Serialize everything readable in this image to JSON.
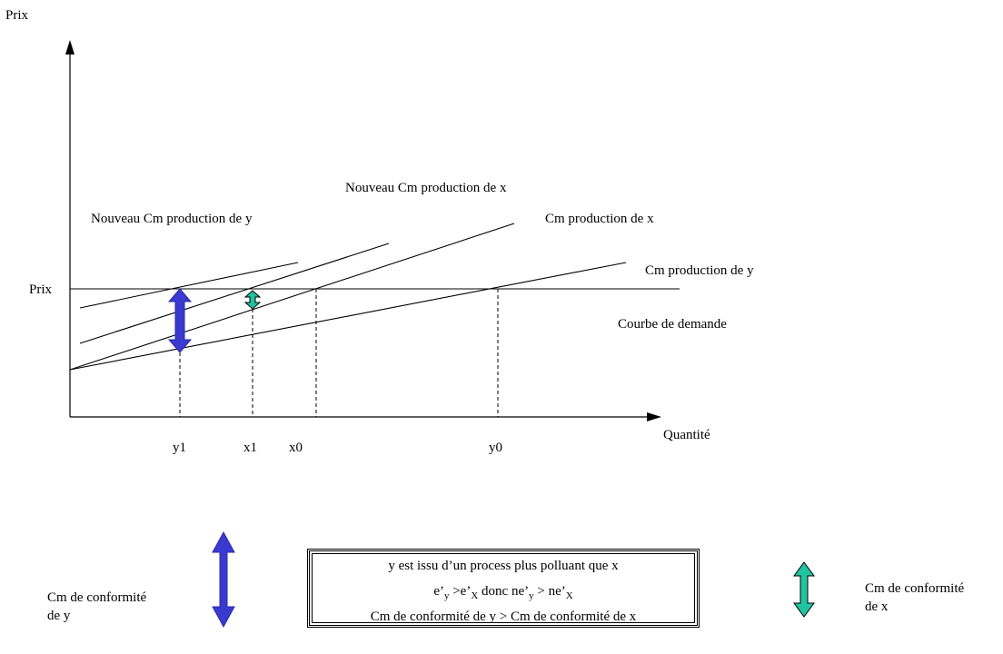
{
  "axes": {
    "y_label": "Prix",
    "x_label": "Quantité",
    "price_label": "Prix"
  },
  "curve_labels": {
    "new_cm_x": "Nouveau Cm production de x",
    "new_cm_y": "Nouveau Cm production de y",
    "cm_x": "Cm production de x",
    "cm_y": "Cm production de y",
    "demand": "Courbe de demande"
  },
  "ticks": {
    "y1": "y1",
    "x1": "x1",
    "x0": "x0",
    "y0": "y0"
  },
  "colors": {
    "y_arrow": "#3a3ad0",
    "x_arrow": "#1fc4a0",
    "line": "#000000"
  },
  "legend": {
    "y_line1": "Cm de conformité",
    "y_line2": "de y",
    "x_line1": "Cm de conformité",
    "x_line2": "de x"
  },
  "box": {
    "line1": "y est issu d’un process plus polluant que x",
    "line2_pre": "e’",
    "line2_sub1": "y",
    "line2_mid": " >e’",
    "line2_sub2": "X",
    "line2_mid2": " donc ne’",
    "line2_sub3": "y",
    "line2_mid3": " > ne’",
    "line2_sub4": "X",
    "line3": "Cm de conformité de y > Cm de conformité de x"
  }
}
